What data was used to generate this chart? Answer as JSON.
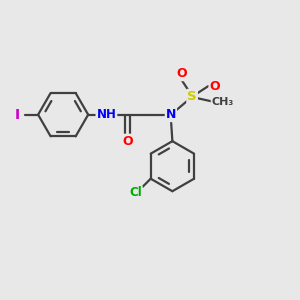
{
  "bg_color": "#e8e8e8",
  "atom_colors": {
    "C": "#404040",
    "N": "#0000ff",
    "O": "#ff0000",
    "S": "#cccc00",
    "Cl": "#00aa00",
    "I": "#cc00cc",
    "H": "#808080"
  },
  "bond_color": "#404040",
  "bond_width": 1.6
}
